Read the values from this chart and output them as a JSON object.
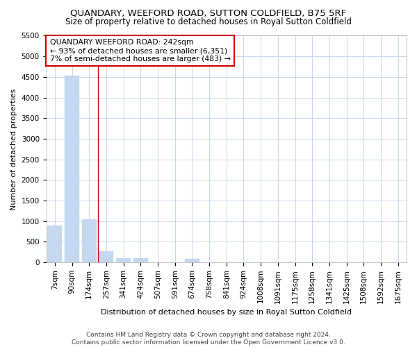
{
  "title": "QUANDARY, WEEFORD ROAD, SUTTON COLDFIELD, B75 5RF",
  "subtitle": "Size of property relative to detached houses in Royal Sutton Coldfield",
  "xlabel": "Distribution of detached houses by size in Royal Sutton Coldfield",
  "ylabel": "Number of detached properties",
  "categories": [
    "7sqm",
    "90sqm",
    "174sqm",
    "257sqm",
    "341sqm",
    "424sqm",
    "507sqm",
    "591sqm",
    "674sqm",
    "758sqm",
    "841sqm",
    "924sqm",
    "1008sqm",
    "1091sqm",
    "1175sqm",
    "1258sqm",
    "1341sqm",
    "1425sqm",
    "1508sqm",
    "1592sqm",
    "1675sqm"
  ],
  "values": [
    900,
    4530,
    1050,
    280,
    100,
    100,
    5,
    5,
    80,
    0,
    0,
    0,
    0,
    0,
    0,
    0,
    0,
    0,
    0,
    0,
    0
  ],
  "bar_color_default": "#c5d8f0",
  "annotation_text": "QUANDARY WEEFORD ROAD: 242sqm\n← 93% of detached houses are smaller (6,351)\n7% of semi-detached houses are larger (483) →",
  "annotation_box_edgecolor": "#cc0000",
  "vline_color": "#cc0000",
  "vline_x": 2.5,
  "ylim": [
    0,
    5500
  ],
  "yticks": [
    0,
    500,
    1000,
    1500,
    2000,
    2500,
    3000,
    3500,
    4000,
    4500,
    5000,
    5500
  ],
  "footer1": "Contains HM Land Registry data © Crown copyright and database right 2024.",
  "footer2": "Contains public sector information licensed under the Open Government Licence v3.0.",
  "bg_color": "#ffffff",
  "grid_color": "#c8d8eb",
  "title_fontsize": 9.5,
  "subtitle_fontsize": 8.5,
  "axis_label_fontsize": 8,
  "tick_fontsize": 7.5,
  "footer_fontsize": 6.5
}
